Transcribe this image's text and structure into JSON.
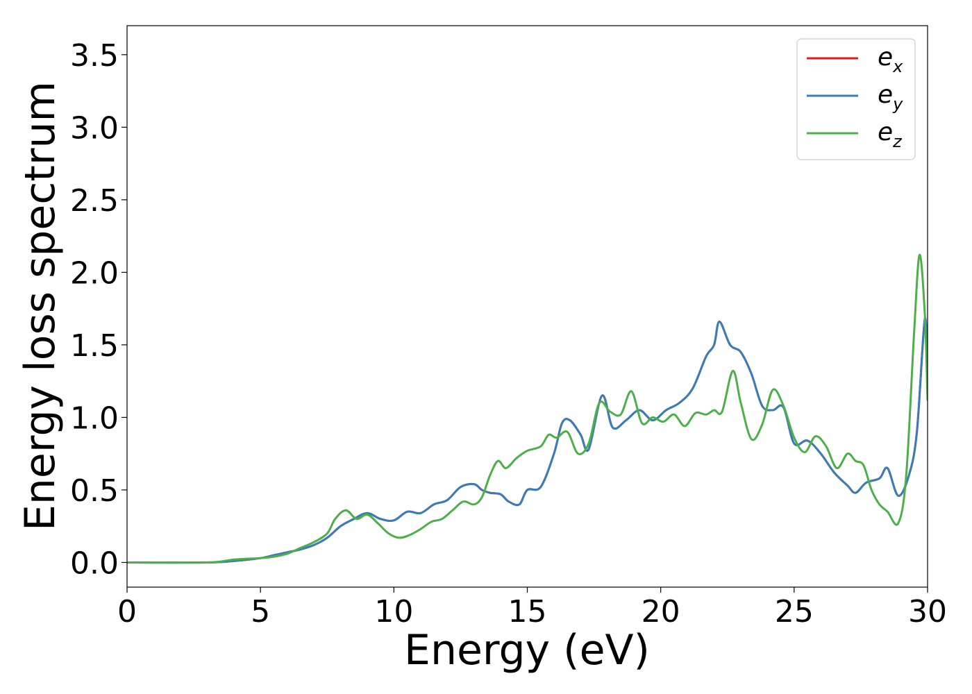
{
  "chart_data": {
    "type": "line",
    "title": "",
    "xlabel": "Energy (eV)",
    "ylabel": "Energy loss spectrum",
    "xlim": [
      0,
      30
    ],
    "ylim": [
      -0.17,
      3.7
    ],
    "xticks": [
      0,
      5,
      10,
      15,
      20,
      25,
      30
    ],
    "xtick_labels": [
      "0",
      "5",
      "10",
      "15",
      "20",
      "25",
      "30"
    ],
    "yticks": [
      0.0,
      0.5,
      1.0,
      1.5,
      2.0,
      2.5,
      3.0,
      3.5
    ],
    "ytick_labels": [
      "0.0",
      "0.5",
      "1.0",
      "1.5",
      "2.0",
      "2.5",
      "3.0",
      "3.5"
    ],
    "grid": false,
    "legend_position": "top-right",
    "series": [
      {
        "name": "e",
        "subscript": "x",
        "color": "#e41a1c",
        "x": [
          0,
          3,
          4,
          5,
          5.5,
          6,
          6.5,
          7,
          7.5,
          8,
          8.5,
          9,
          9.5,
          10,
          10.5,
          11,
          11.5,
          12,
          12.5,
          13,
          13.3,
          13.6,
          14,
          14.3,
          14.7,
          15,
          15.5,
          16,
          16.3,
          16.6,
          17,
          17.3,
          17.8,
          18.2,
          18.7,
          19.2,
          19.7,
          20.2,
          20.7,
          21.2,
          21.7,
          22,
          22.2,
          22.6,
          23,
          23.4,
          23.8,
          24.2,
          24.6,
          25,
          25.5,
          26,
          26.5,
          27,
          27.3,
          27.7,
          28.2,
          28.5,
          28.9,
          29.3,
          29.6,
          29.9,
          30
        ],
        "y": [
          0,
          0,
          0.01,
          0.03,
          0.05,
          0.07,
          0.09,
          0.12,
          0.17,
          0.25,
          0.3,
          0.34,
          0.3,
          0.29,
          0.35,
          0.34,
          0.4,
          0.43,
          0.52,
          0.54,
          0.5,
          0.48,
          0.47,
          0.42,
          0.4,
          0.5,
          0.52,
          0.75,
          0.96,
          0.98,
          0.88,
          0.78,
          1.15,
          0.93,
          0.98,
          1.05,
          0.98,
          1.05,
          1.1,
          1.2,
          1.42,
          1.5,
          1.66,
          1.5,
          1.45,
          1.3,
          1.08,
          1.05,
          1.07,
          0.82,
          0.84,
          0.75,
          0.62,
          0.53,
          0.48,
          0.55,
          0.58,
          0.65,
          0.46,
          0.6,
          0.9,
          1.68,
          1.2
        ]
      },
      {
        "name": "e",
        "subscript": "y",
        "color": "#377eb8",
        "x": [
          0,
          3,
          4,
          5,
          5.5,
          6,
          6.5,
          7,
          7.5,
          8,
          8.5,
          9,
          9.5,
          10,
          10.5,
          11,
          11.5,
          12,
          12.5,
          13,
          13.3,
          13.6,
          14,
          14.3,
          14.7,
          15,
          15.5,
          16,
          16.3,
          16.6,
          17,
          17.3,
          17.8,
          18.2,
          18.7,
          19.2,
          19.7,
          20.2,
          20.7,
          21.2,
          21.7,
          22,
          22.2,
          22.6,
          23,
          23.4,
          23.8,
          24.2,
          24.6,
          25,
          25.5,
          26,
          26.5,
          27,
          27.3,
          27.7,
          28.2,
          28.5,
          28.9,
          29.3,
          29.6,
          29.9,
          30
        ],
        "y": [
          0,
          0,
          0.01,
          0.03,
          0.05,
          0.07,
          0.09,
          0.12,
          0.17,
          0.25,
          0.3,
          0.34,
          0.3,
          0.29,
          0.35,
          0.34,
          0.4,
          0.43,
          0.52,
          0.54,
          0.5,
          0.48,
          0.47,
          0.42,
          0.4,
          0.5,
          0.52,
          0.75,
          0.96,
          0.98,
          0.88,
          0.78,
          1.15,
          0.93,
          0.98,
          1.05,
          0.98,
          1.05,
          1.1,
          1.2,
          1.42,
          1.5,
          1.66,
          1.5,
          1.45,
          1.3,
          1.08,
          1.05,
          1.07,
          0.82,
          0.84,
          0.75,
          0.62,
          0.53,
          0.48,
          0.55,
          0.58,
          0.65,
          0.46,
          0.6,
          0.9,
          1.68,
          1.2
        ]
      },
      {
        "name": "e",
        "subscript": "z",
        "color": "#4daf4a",
        "x": [
          0,
          3,
          4,
          5,
          5.5,
          6,
          6.5,
          7,
          7.5,
          7.8,
          8.2,
          8.6,
          9,
          9.4,
          9.8,
          10.2,
          10.6,
          11,
          11.4,
          11.8,
          12.2,
          12.6,
          13,
          13.3,
          13.6,
          13.9,
          14.2,
          14.6,
          15,
          15.5,
          15.8,
          16.1,
          16.5,
          16.9,
          17.3,
          17.7,
          18.1,
          18.5,
          18.9,
          19.3,
          19.7,
          20.1,
          20.5,
          20.9,
          21.3,
          21.7,
          22,
          22.3,
          22.7,
          23,
          23.4,
          23.8,
          24.2,
          24.6,
          25,
          25.4,
          25.8,
          26.2,
          26.6,
          27,
          27.3,
          27.6,
          27.9,
          28.2,
          28.5,
          28.9,
          29.2,
          29.5,
          29.7,
          29.9,
          30
        ],
        "y": [
          0,
          0,
          0.02,
          0.03,
          0.04,
          0.06,
          0.1,
          0.14,
          0.2,
          0.3,
          0.36,
          0.3,
          0.33,
          0.27,
          0.2,
          0.17,
          0.19,
          0.23,
          0.28,
          0.3,
          0.36,
          0.42,
          0.4,
          0.45,
          0.6,
          0.7,
          0.65,
          0.72,
          0.77,
          0.8,
          0.88,
          0.86,
          0.9,
          0.75,
          0.82,
          1.1,
          1.04,
          1.02,
          1.18,
          0.96,
          1.0,
          0.97,
          1.02,
          0.94,
          1.03,
          1.02,
          1.05,
          1.04,
          1.32,
          1.1,
          0.85,
          0.95,
          1.19,
          1.08,
          0.86,
          0.76,
          0.87,
          0.8,
          0.65,
          0.75,
          0.7,
          0.67,
          0.5,
          0.4,
          0.35,
          0.27,
          0.6,
          1.6,
          2.12,
          1.7,
          1.12
        ]
      }
    ]
  }
}
